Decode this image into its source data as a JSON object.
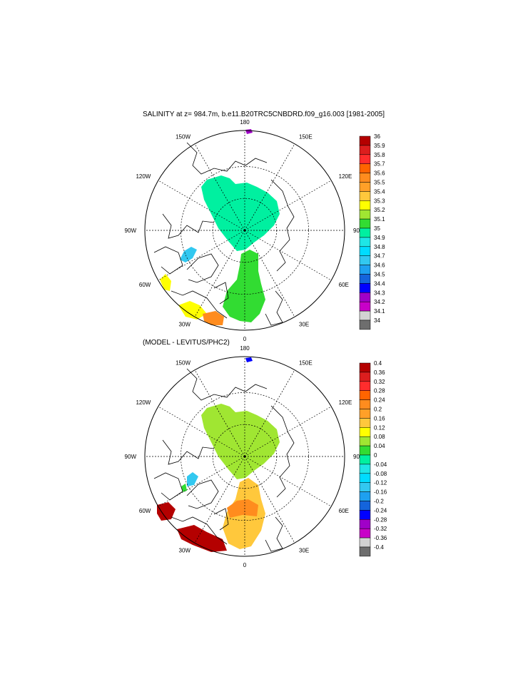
{
  "top_panel": {
    "title": "SALINITY at z= 984.7m, b.e11.B20TRC5CNBDRD.f09_g16.003 [1981-2005]",
    "longitude_labels": [
      "180",
      "150E",
      "120E",
      "90E",
      "60E",
      "30E",
      "0",
      "30W",
      "60W",
      "90W",
      "120W",
      "150W"
    ],
    "colorbar": {
      "labels": [
        "36",
        "35.9",
        "35.8",
        "35.7",
        "35.6",
        "35.5",
        "35.4",
        "35.3",
        "35.2",
        "35.1",
        "35",
        "34.9",
        "34.8",
        "34.7",
        "34.6",
        "34.5",
        "34.4",
        "34.3",
        "34.2",
        "34.1",
        "34"
      ],
      "colors": [
        "#b40000",
        "#dc1e1e",
        "#ff2d2d",
        "#ff6400",
        "#ff8c1e",
        "#ffa028",
        "#ffc83c",
        "#ffff00",
        "#a0e632",
        "#32dc32",
        "#00f0a0",
        "#1ee6e6",
        "#00dcff",
        "#32c8f0",
        "#1ea0f0",
        "#1464dc",
        "#0000ff",
        "#a000c8",
        "#c800c8",
        "#d2d2d2",
        "#6e6e6e"
      ]
    }
  },
  "bottom_panel": {
    "title": "(MODEL - LEVITUS/PHC2)",
    "longitude_labels": [
      "180",
      "150E",
      "120E",
      "90E",
      "60E",
      "30E",
      "0",
      "30W",
      "60W",
      "90W",
      "120W",
      "150W"
    ],
    "colorbar": {
      "labels": [
        "0.4",
        "0.36",
        "0.32",
        "0.28",
        "0.24",
        "0.2",
        "0.16",
        "0.12",
        "0.08",
        "0.04",
        "0",
        "-0.04",
        "-0.08",
        "-0.12",
        "-0.16",
        "-0.2",
        "-0.24",
        "-0.28",
        "-0.32",
        "-0.36",
        "-0.4"
      ],
      "colors": [
        "#b40000",
        "#dc1e1e",
        "#ff2d2d",
        "#ff6400",
        "#ff8c1e",
        "#ffa028",
        "#ffc83c",
        "#ffff00",
        "#a0e632",
        "#32dc32",
        "#00f0a0",
        "#1ee6e6",
        "#00dcff",
        "#32c8f0",
        "#1ea0f0",
        "#1464dc",
        "#0000ff",
        "#a000c8",
        "#c800c8",
        "#d2d2d2",
        "#6e6e6e"
      ]
    }
  }
}
